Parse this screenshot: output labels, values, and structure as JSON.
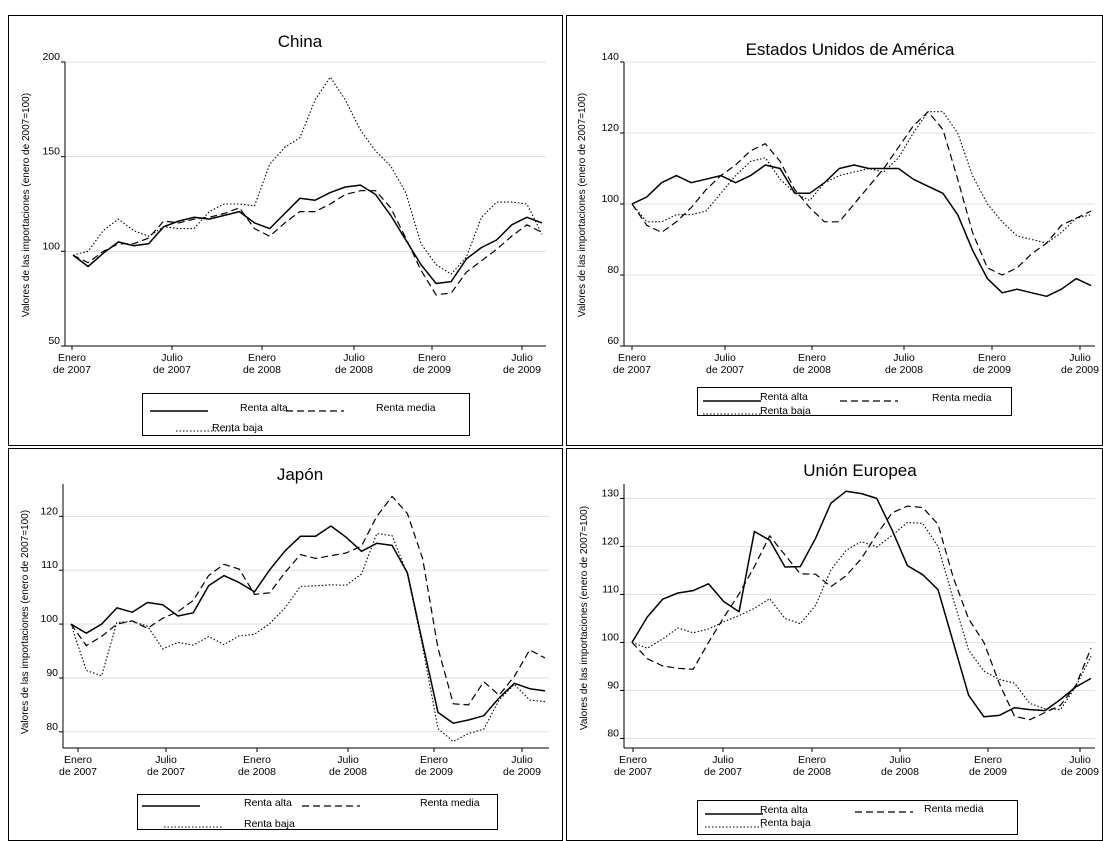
{
  "chart_data": [
    {
      "type": "line",
      "title": "China",
      "ylabel": "Valores de las importaciones (enero de 2007=100)",
      "ylim": [
        50,
        200
      ],
      "yticks": [
        50,
        100,
        150,
        200
      ],
      "x_tick_labels": [
        [
          "Enero",
          "de 2007"
        ],
        [
          "Julio",
          "de 2007"
        ],
        [
          "Enero",
          "de 2008"
        ],
        [
          "Julio",
          "de 2008"
        ],
        [
          "Enero",
          "de 2009"
        ],
        [
          "Julio",
          "de 2009"
        ]
      ],
      "legend": "bottom",
      "series": [
        {
          "name": "Renta alta",
          "values": [
            98,
            92,
            99,
            105,
            103,
            104,
            113,
            116,
            118,
            117,
            119,
            121,
            115,
            112,
            120,
            128,
            127,
            131,
            134,
            135,
            130,
            119,
            106,
            93,
            83,
            84,
            96,
            102,
            106,
            114,
            118,
            115
          ]
        },
        {
          "name": "Renta media",
          "values": [
            98,
            94,
            100,
            104,
            104,
            107,
            116,
            115,
            117,
            118,
            120,
            123,
            112,
            108,
            115,
            121,
            121,
            125,
            130,
            132,
            132,
            123,
            107,
            90,
            77,
            78,
            89,
            95,
            101,
            108,
            114,
            110
          ]
        },
        {
          "name": "Renta baja",
          "values": [
            98,
            100,
            111,
            117,
            111,
            108,
            113,
            112,
            112,
            121,
            125,
            125,
            124,
            146,
            155,
            160,
            180,
            192,
            180,
            164,
            153,
            145,
            131,
            104,
            93,
            88,
            97,
            118,
            126,
            126,
            125,
            109
          ]
        }
      ]
    },
    {
      "type": "line",
      "title": "Estados Unidos de América",
      "ylabel": "Valores de las importaciones (enero de 2007=100)",
      "ylim": [
        60,
        140
      ],
      "yticks": [
        60,
        80,
        100,
        120,
        140
      ],
      "x_tick_labels": [
        [
          "Enero",
          "de 2007"
        ],
        [
          "Julio",
          "de 2007"
        ],
        [
          "Enero",
          "de 2008"
        ],
        [
          "Julio",
          "de 2008"
        ],
        [
          "Enero",
          "de 2009"
        ],
        [
          "Julio",
          "de 2009"
        ]
      ],
      "legend": "bottom",
      "series": [
        {
          "name": "Renta alta",
          "values": [
            100,
            102,
            106,
            108,
            106,
            107,
            108,
            106,
            108,
            111,
            110,
            103,
            103,
            106,
            110,
            111,
            110,
            110,
            110,
            107,
            105,
            103,
            97,
            87,
            79,
            75,
            76,
            75,
            74,
            76,
            79,
            77
          ]
        },
        {
          "name": "Renta media",
          "values": [
            100,
            94,
            92,
            95,
            99,
            104,
            108,
            111,
            115,
            117,
            112,
            104,
            99,
            95,
            95,
            100,
            105,
            110,
            116,
            122,
            126,
            121,
            107,
            92,
            82,
            80,
            82,
            86,
            89,
            94,
            96,
            98
          ]
        },
        {
          "name": "Renta baja",
          "values": [
            100,
            95,
            95,
            97,
            97,
            98,
            103,
            108,
            112,
            113,
            107,
            103,
            101,
            106,
            108,
            109,
            110,
            109,
            113,
            120,
            126,
            126,
            120,
            108,
            100,
            95,
            91,
            90,
            89,
            92,
            96,
            97
          ]
        }
      ]
    },
    {
      "type": "line",
      "title": "Japón",
      "ylabel": "Valores de las importaciones (enero de 2007=100)",
      "ylim": [
        77,
        126
      ],
      "yticks": [
        80,
        90,
        100,
        110,
        120
      ],
      "x_tick_labels": [
        [
          "Enero",
          "de 2007"
        ],
        [
          "Julio",
          "de 2007"
        ],
        [
          "Enero",
          "de 2008"
        ],
        [
          "Julio",
          "de 2008"
        ],
        [
          "Enero",
          "de 2009"
        ],
        [
          "Julio",
          "de 2009"
        ]
      ],
      "legend": "bottom",
      "series": [
        {
          "name": "Renta alta",
          "values": [
            100,
            98.3,
            100,
            103,
            102.2,
            104,
            103.6,
            101.5,
            102.1,
            107.1,
            109,
            107.7,
            106,
            110.1,
            113.6,
            116.3,
            116.3,
            118.2,
            116.1,
            113.5,
            115,
            114.6,
            109.5,
            96.4,
            83.6,
            81.6,
            82.2,
            83,
            86.3,
            89,
            88,
            87.6
          ]
        },
        {
          "name": "Renta media",
          "values": [
            100,
            96,
            97.7,
            100,
            100.6,
            99.2,
            101.1,
            102.3,
            104.4,
            109,
            111.1,
            110.2,
            105.5,
            105.8,
            109.6,
            112.9,
            112.2,
            112.7,
            113.2,
            114.5,
            120,
            123.7,
            120.5,
            112.1,
            95.5,
            85.2,
            85,
            89.3,
            86.8,
            90.3,
            95.2,
            93.7
          ]
        },
        {
          "name": "Renta baja",
          "values": [
            100,
            91.4,
            90.4,
            100.3,
            100.5,
            99.6,
            95.4,
            96.6,
            96.1,
            97.7,
            96.2,
            97.8,
            98.1,
            100.1,
            103,
            107,
            107.1,
            107.3,
            107.2,
            109.3,
            116.8,
            116.4,
            109.3,
            95.7,
            80.6,
            78.2,
            79.7,
            80.5,
            85.9,
            88.8,
            85.9,
            85.6
          ]
        }
      ]
    },
    {
      "type": "line",
      "title": "Unión Europea",
      "ylabel": "Valores de las importaciones (enero de 2007=100)",
      "ylim": [
        78,
        133
      ],
      "yticks": [
        80,
        90,
        100,
        110,
        120,
        130
      ],
      "x_tick_labels": [
        [
          "Enero",
          "de 2007"
        ],
        [
          "Julio",
          "de 2007"
        ],
        [
          "Enero",
          "de 2008"
        ],
        [
          "Julio",
          "de 2008"
        ],
        [
          "Enero",
          "de 2009"
        ],
        [
          "Julio",
          "de 2009"
        ]
      ],
      "legend": "bottom",
      "series": [
        {
          "name": "Renta alta",
          "values": [
            100,
            105.3,
            109,
            110.3,
            110.8,
            112.2,
            108.5,
            106.4,
            123.1,
            121.3,
            115.7,
            115.8,
            121.7,
            129,
            131.5,
            131,
            130,
            123.4,
            116,
            114.1,
            111,
            100,
            89,
            84.5,
            84.8,
            86.4,
            86,
            85.8,
            88.1,
            90.7,
            92.5
          ]
        },
        {
          "name": "Renta media",
          "values": [
            100,
            96.6,
            95.1,
            94.6,
            94.4,
            100,
            105.2,
            110.1,
            115.8,
            122.2,
            118.2,
            114.3,
            114.2,
            111.6,
            113.9,
            117.5,
            122.5,
            127,
            128.4,
            128.1,
            124.6,
            113.5,
            104.9,
            100,
            91.5,
            84.6,
            83.9,
            85.4,
            86.9,
            91,
            98.8
          ]
        },
        {
          "name": "Renta baja",
          "values": [
            100,
            98.8,
            100.7,
            103,
            102,
            102.8,
            104.3,
            105.6,
            107.1,
            109.1,
            105,
            103.9,
            107.7,
            115.1,
            119.2,
            121,
            119.9,
            122.3,
            125,
            124.8,
            120,
            109,
            98.4,
            94,
            92.3,
            91.5,
            87.3,
            86.2,
            86,
            90.8,
            97.1
          ]
        }
      ]
    }
  ],
  "line_styles": {
    "Renta alta": "solid",
    "Renta media": "dashed",
    "Renta baja": "dotted"
  }
}
